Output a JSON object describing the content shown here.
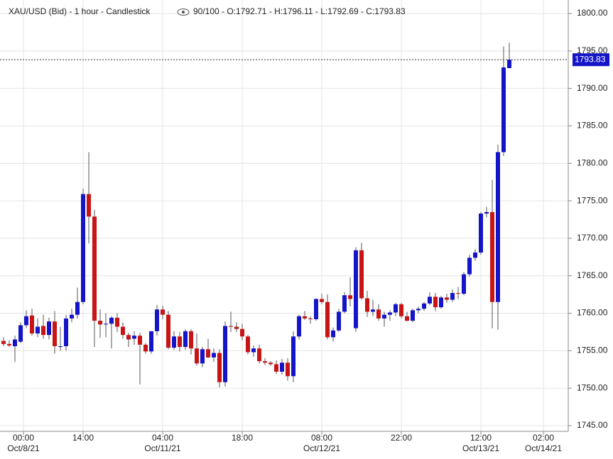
{
  "chart_data": {
    "type": "candlestick",
    "title": "XAU/USD (Bid) - 1 hour - Candlestick",
    "summary": "90/100 - O:1792.71 - H:1796.11 - L:1792.69 - C:1793.83",
    "up_color": "#1414c8",
    "down_color": "#c81414",
    "grid": true,
    "ylim": [
      1744.24,
      1801.8
    ],
    "xlim": [
      -0.625,
      99.375
    ],
    "yticks": [
      {
        "value": 1745,
        "label": "1745.00"
      },
      {
        "value": 1750,
        "label": "1750.00"
      },
      {
        "value": 1755,
        "label": "1755.00"
      },
      {
        "value": 1760,
        "label": "1760.00"
      },
      {
        "value": 1765,
        "label": "1765.00"
      },
      {
        "value": 1770,
        "label": "1770.00"
      },
      {
        "value": 1775,
        "label": "1775.00"
      },
      {
        "value": 1780,
        "label": "1780.00"
      },
      {
        "value": 1785,
        "label": "1785.00"
      },
      {
        "value": 1790,
        "label": "1790.00"
      },
      {
        "value": 1795,
        "label": "1795.00"
      },
      {
        "value": 1800,
        "label": "1800.00"
      }
    ],
    "xticks": [
      {
        "value": 3.5,
        "label": "00:00",
        "date": "Oct/8/21"
      },
      {
        "value": 14,
        "label": "14:00"
      },
      {
        "value": 28,
        "label": "04:00",
        "date": "Oct/11/21"
      },
      {
        "value": 42,
        "label": "18:00"
      },
      {
        "value": 56,
        "label": "08:00",
        "date": "Oct/12/21"
      },
      {
        "value": 70,
        "label": "22:00"
      },
      {
        "value": 84,
        "label": "12:00",
        "date": "Oct/13/21"
      },
      {
        "value": 95,
        "label": "02:00",
        "date": "Oct/14/21"
      }
    ],
    "last_price": {
      "value": 1793.83,
      "label": "1793.83"
    },
    "open": [
      1756.3,
      1755.9,
      1755.6,
      1756.2,
      1758.4,
      1759.7,
      1757.3,
      1758.3,
      1757.1,
      1758.9,
      1755.6,
      1755.6,
      1759.3,
      1759.8,
      1761.5,
      1775.9,
      1772.9,
      1759.0,
      1758.5,
      1758.6,
      1759.4,
      1758.2,
      1757.1,
      1756.6,
      1757.0,
      1755.8,
      1754.9,
      1757.6,
      1760.5,
      1759.8,
      1755.4,
      1756.9,
      1755.5,
      1757.6,
      1755.3,
      1753.3,
      1755.2,
      1754.1,
      1754.7,
      1750.8,
      1758.3,
      1758.2,
      1757.9,
      1756.9,
      1754.8,
      1755.3,
      1753.6,
      1753.4,
      1753.2,
      1752.2,
      1753.4,
      1751.6,
      1756.9,
      1759.6,
      1759.3,
      1759.2,
      1761.9,
      1761.5,
      1756.8,
      1757.7,
      1760.2,
      1762.4,
      1758.0,
      1768.4,
      1762.0,
      1760.2,
      1760.5,
      1759.3,
      1759.8,
      1760.1,
      1761.2,
      1759.6,
      1759.0,
      1760.4,
      1760.6,
      1761.3,
      1762.2,
      1760.8,
      1762.1,
      1761.8,
      1762.7,
      1762.6,
      1765.2,
      1767.4,
      1768.1,
      1773.3,
      1773.5,
      1761.5,
      1781.5,
      1792.71
    ],
    "high": [
      1756.8,
      1756.4,
      1757.0,
      1758.8,
      1760.4,
      1760.6,
      1759.3,
      1759.8,
      1759.4,
      1760.3,
      1758.2,
      1759.8,
      1760.6,
      1763.4,
      1776.6,
      1781.5,
      1773.8,
      1760.5,
      1760.0,
      1759.6,
      1760.0,
      1758.8,
      1757.4,
      1757.6,
      1757.4,
      1756.0,
      1757.6,
      1761.1,
      1761.0,
      1760.3,
      1757.6,
      1757.5,
      1757.9,
      1757.9,
      1757.3,
      1755.5,
      1756.6,
      1755.3,
      1755.2,
      1758.9,
      1760.2,
      1758.8,
      1758.6,
      1757.1,
      1755.7,
      1755.8,
      1754.0,
      1753.6,
      1753.7,
      1753.9,
      1754.0,
      1757.6,
      1759.8,
      1760.3,
      1759.6,
      1762.0,
      1762.6,
      1762.5,
      1758.1,
      1760.6,
      1762.8,
      1764.8,
      1768.8,
      1769.4,
      1763.0,
      1761.8,
      1761.2,
      1760.2,
      1760.4,
      1761.4,
      1761.4,
      1760.2,
      1760.6,
      1760.9,
      1761.5,
      1762.8,
      1762.7,
      1762.3,
      1762.6,
      1763.2,
      1763.5,
      1765.5,
      1767.8,
      1768.6,
      1773.5,
      1774.2,
      1777.8,
      1782.5,
      1795.6,
      1796.11
    ],
    "low": [
      1755.6,
      1755.5,
      1753.5,
      1756.0,
      1758.0,
      1757.0,
      1756.8,
      1756.6,
      1756.5,
      1754.6,
      1755.0,
      1755.0,
      1758.8,
      1759.3,
      1761.2,
      1769.3,
      1755.5,
      1756.7,
      1756.8,
      1755.3,
      1757.5,
      1756.6,
      1755.5,
      1755.8,
      1750.5,
      1754.6,
      1754.6,
      1757.0,
      1759.2,
      1755.2,
      1755.1,
      1754.9,
      1755.1,
      1754.5,
      1753.0,
      1752.8,
      1754.0,
      1753.5,
      1750.1,
      1750.2,
      1757.5,
      1757.5,
      1756.4,
      1754.5,
      1754.2,
      1753.3,
      1753.1,
      1753.0,
      1751.9,
      1751.8,
      1751.0,
      1750.8,
      1756.5,
      1759.1,
      1758.6,
      1759.0,
      1761.2,
      1756.5,
      1756.2,
      1757.5,
      1760.0,
      1760.9,
      1757.5,
      1761.8,
      1759.5,
      1759.6,
      1759.0,
      1758.2,
      1759.0,
      1759.6,
      1759.3,
      1758.9,
      1758.8,
      1760.0,
      1760.3,
      1761.1,
      1760.3,
      1760.6,
      1761.4,
      1761.5,
      1761.9,
      1762.4,
      1764.9,
      1767.0,
      1767.8,
      1772.8,
      1758.0,
      1757.8,
      1781.0,
      1792.69
    ],
    "close": [
      1755.9,
      1755.7,
      1756.5,
      1758.4,
      1759.6,
      1757.3,
      1758.2,
      1757.1,
      1758.9,
      1755.6,
      1755.6,
      1759.3,
      1759.8,
      1761.5,
      1775.9,
      1772.9,
      1759.0,
      1758.5,
      1758.6,
      1759.4,
      1758.2,
      1757.1,
      1756.5,
      1757.0,
      1755.8,
      1754.9,
      1757.6,
      1760.5,
      1759.8,
      1755.4,
      1756.9,
      1755.5,
      1757.6,
      1755.3,
      1753.3,
      1755.2,
      1754.1,
      1754.7,
      1750.8,
      1758.3,
      1758.2,
      1757.9,
      1756.9,
      1754.8,
      1755.3,
      1753.6,
      1753.4,
      1753.2,
      1752.2,
      1753.4,
      1751.6,
      1756.9,
      1759.6,
      1759.3,
      1759.2,
      1761.9,
      1761.5,
      1756.8,
      1757.7,
      1760.2,
      1762.4,
      1761.9,
      1768.4,
      1762.0,
      1760.2,
      1760.5,
      1759.3,
      1759.8,
      1760.1,
      1761.2,
      1759.6,
      1759.0,
      1760.4,
      1760.6,
      1761.3,
      1762.2,
      1760.8,
      1762.1,
      1761.8,
      1762.7,
      1762.6,
      1765.2,
      1767.4,
      1768.1,
      1773.3,
      1773.5,
      1761.5,
      1781.5,
      1792.8,
      1793.83
    ]
  }
}
